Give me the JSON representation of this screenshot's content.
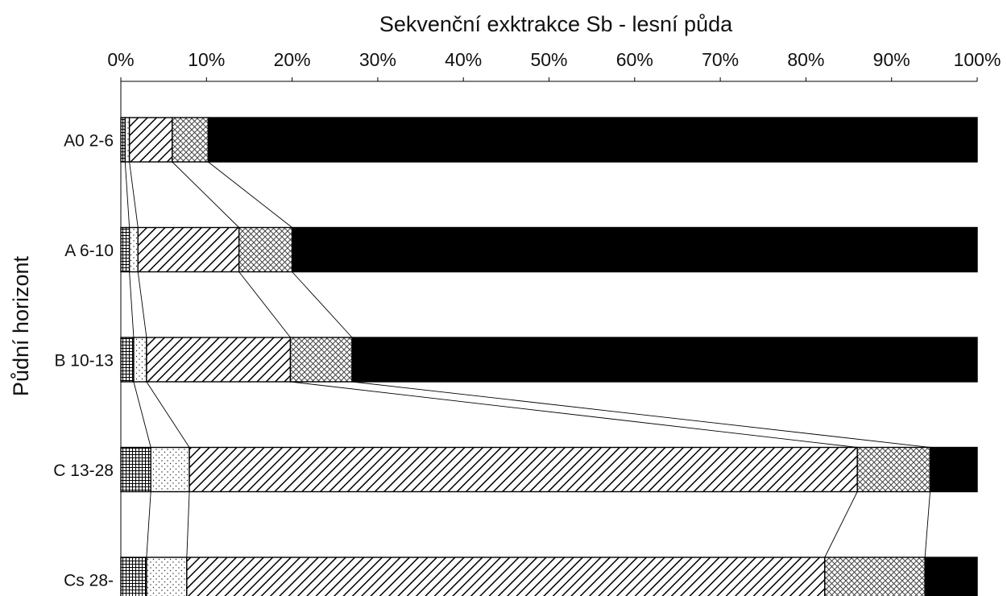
{
  "chart_data": {
    "type": "bar",
    "orientation": "horizontal",
    "stacked": "percent",
    "title": "Sekvenční exktrakce Sb - lesní půda",
    "xlabel": "",
    "ylabel": "Půdní horizont",
    "xlim": [
      0,
      100
    ],
    "x_ticks": [
      "0%",
      "10%",
      "20%",
      "30%",
      "40%",
      "50%",
      "60%",
      "70%",
      "80%",
      "90%",
      "100%"
    ],
    "categories": [
      "A0 2-6",
      "A 6-10",
      "B 10-13",
      "C 13-28",
      "Cs 28-"
    ],
    "series": [
      {
        "pattern": "grid",
        "values": [
          0.5,
          1.0,
          1.5,
          3.5,
          3.0
        ]
      },
      {
        "pattern": "dots",
        "values": [
          0.5,
          1.0,
          1.5,
          4.5,
          4.7
        ]
      },
      {
        "pattern": "diagonal",
        "values": [
          5.0,
          11.8,
          16.8,
          78.0,
          74.5
        ]
      },
      {
        "pattern": "crosshatch",
        "values": [
          4.2,
          6.2,
          7.2,
          8.5,
          11.7
        ]
      },
      {
        "pattern": "solid-black",
        "values": [
          89.8,
          80.0,
          73.0,
          5.5,
          6.1
        ]
      }
    ],
    "connector_lines": true,
    "grid": false,
    "legend": "none"
  }
}
